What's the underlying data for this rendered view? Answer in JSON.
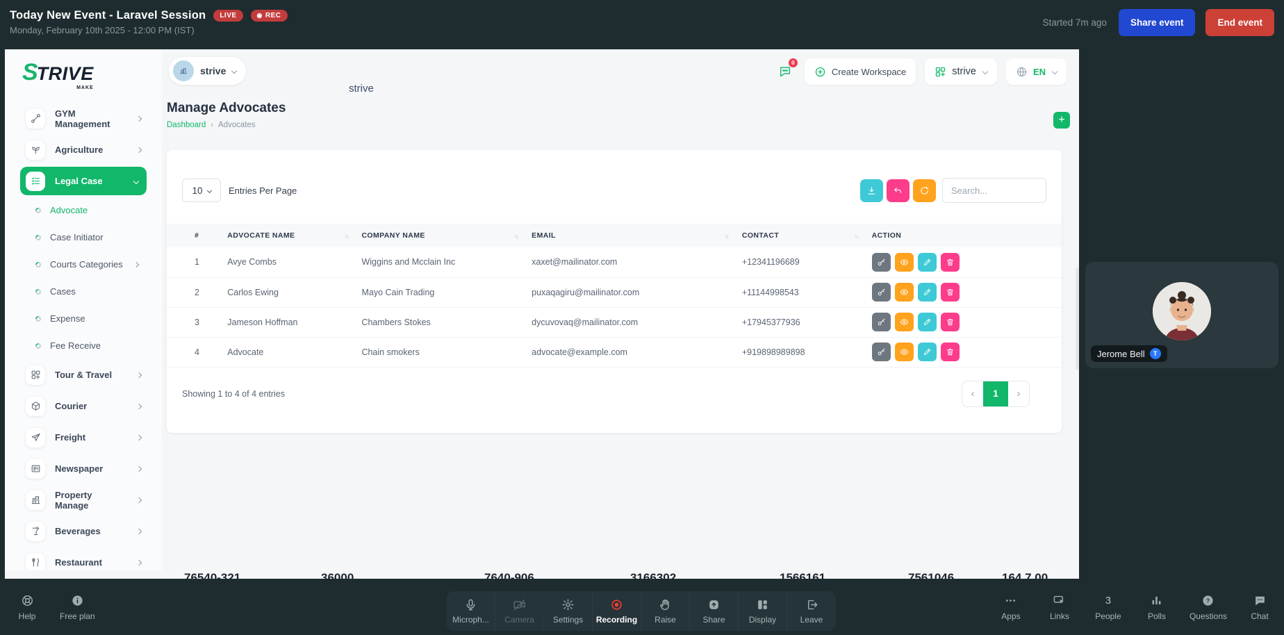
{
  "event_bar": {
    "title": "Today New Event - Laravel Session",
    "live_badge": "LIVE",
    "rec_badge": "REC",
    "subtitle": "Monday, February 10th 2025 - 12:00 PM (IST)",
    "started_ago": "Started 7m ago",
    "share_button": "Share event",
    "end_button": "End event"
  },
  "app": {
    "logo_s": "S",
    "logo_rest": "TRIVE",
    "logo_sub": "MAKE",
    "workspace_pill": "strive",
    "floating_label": "strive",
    "chat_badge": "0",
    "create_workspace": "Create Workspace",
    "workspace_selector": "strive",
    "language": "EN",
    "page_title": "Manage Advocates",
    "breadcrumb": [
      "Dashboard",
      "Advocates"
    ],
    "add_button": "+",
    "sidebar": [
      {
        "label": "GYM Management",
        "icon": "dumbbell-icon",
        "type": "main",
        "chevron": "right"
      },
      {
        "label": "Agriculture",
        "icon": "plant-icon",
        "type": "main",
        "chevron": "right"
      },
      {
        "label": "Legal Case",
        "icon": "checklist-icon",
        "type": "main",
        "chevron": "down",
        "active": true
      },
      {
        "label": "Advocate",
        "type": "sub",
        "active": true
      },
      {
        "label": "Case Initiator",
        "type": "sub"
      },
      {
        "label": "Courts Categories",
        "type": "sub",
        "chevron": "right"
      },
      {
        "label": "Cases",
        "type": "sub"
      },
      {
        "label": "Expense",
        "type": "sub"
      },
      {
        "label": "Fee Receive",
        "type": "sub"
      },
      {
        "label": "Tour & Travel",
        "icon": "grid-icon",
        "type": "main",
        "chevron": "right"
      },
      {
        "label": "Courier",
        "icon": "cube-icon",
        "type": "main",
        "chevron": "right"
      },
      {
        "label": "Freight",
        "icon": "plane-icon",
        "type": "main",
        "chevron": "right"
      },
      {
        "label": "Newspaper",
        "icon": "newspaper-icon",
        "type": "main",
        "chevron": "right"
      },
      {
        "label": "Property Manage",
        "icon": "building-icon",
        "type": "main",
        "chevron": "right"
      },
      {
        "label": "Beverages",
        "icon": "cup-icon",
        "type": "main",
        "chevron": "right"
      },
      {
        "label": "Restaurant",
        "icon": "cutlery-icon",
        "type": "main",
        "chevron": "right"
      }
    ],
    "card": {
      "entries_value": "10",
      "entries_label": "Entries Per Page",
      "tools": [
        {
          "name": "export",
          "icon": "download-icon",
          "color": "#3ec9d6"
        },
        {
          "name": "undo",
          "icon": "undo-icon",
          "color": "#fd3c8b"
        },
        {
          "name": "refresh",
          "icon": "refresh-icon",
          "color": "#ffa21d"
        }
      ],
      "search_placeholder": "Search...",
      "table": {
        "columns": [
          {
            "label": "#",
            "sortable": false,
            "class": "col-num"
          },
          {
            "label": "ADVOCATE NAME",
            "sortable": true,
            "class": "col-name"
          },
          {
            "label": "COMPANY NAME",
            "sortable": true,
            "class": "col-company"
          },
          {
            "label": "EMAIL",
            "sortable": true,
            "class": "col-email"
          },
          {
            "label": "CONTACT",
            "sortable": true,
            "class": "col-contact"
          },
          {
            "label": "ACTION",
            "sortable": false,
            "class": "col-action"
          }
        ],
        "rows": [
          {
            "num": "1",
            "name": "Avye Combs",
            "company": "Wiggins and Mcclain Inc",
            "email": "xaxet@mailinator.com",
            "contact": "+12341196689"
          },
          {
            "num": "2",
            "name": "Carlos Ewing",
            "company": "Mayo Cain Trading",
            "email": "puxaqagiru@mailinator.com",
            "contact": "+11144998543"
          },
          {
            "num": "3",
            "name": "Jameson Hoffman",
            "company": "Chambers Stokes",
            "email": "dycuvovaq@mailinator.com",
            "contact": "+17945377936"
          },
          {
            "num": "4",
            "name": "Advocate",
            "company": "Chain smokers",
            "email": "advocate@example.com",
            "contact": "+919898989898"
          }
        ],
        "row_actions": [
          {
            "name": "key",
            "icon": "key-icon",
            "color": "#6e7780"
          },
          {
            "name": "view",
            "icon": "eye-icon",
            "color": "#ffa21d"
          },
          {
            "name": "edit",
            "icon": "pencil-icon",
            "color": "#3ec9d6"
          },
          {
            "name": "delete",
            "icon": "trash-icon",
            "color": "#fd3c8b"
          }
        ]
      },
      "footer_text": "Showing 1 to 4 of 4 entries",
      "pagination": {
        "prev": "‹",
        "current": "1",
        "next": "›"
      }
    },
    "clipped_fragments": [
      "76540-321",
      "36000",
      "7640-906",
      "3166302",
      "1566161",
      "7561046",
      "164 7.00"
    ]
  },
  "participant": {
    "name": "Jerome Bell",
    "badge": "T"
  },
  "toolbar": {
    "left": [
      {
        "label": "Help",
        "icon": "lifebuoy-icon"
      },
      {
        "label": "Free plan",
        "icon": "info-icon"
      }
    ],
    "center": [
      {
        "label": "Microph...",
        "icon": "mic-icon"
      },
      {
        "label": "Camera",
        "icon": "camera-off-icon",
        "state": "disabled"
      },
      {
        "label": "Settings",
        "icon": "gear-icon"
      },
      {
        "label": "Recording",
        "icon": "record-icon",
        "state": "active"
      },
      {
        "label": "Raise",
        "icon": "hand-icon"
      },
      {
        "label": "Share",
        "icon": "share-icon"
      },
      {
        "label": "Display",
        "icon": "display-icon"
      },
      {
        "label": "Leave",
        "icon": "leave-icon"
      }
    ],
    "right": [
      {
        "label": "Apps",
        "icon": "dots-icon"
      },
      {
        "label": "Links",
        "icon": "links-icon"
      },
      {
        "label": "People",
        "icon": "people-count",
        "count": "3"
      },
      {
        "label": "Polls",
        "icon": "polls-icon"
      },
      {
        "label": "Questions",
        "icon": "question-icon"
      },
      {
        "label": "Chat",
        "icon": "chat-icon"
      }
    ]
  },
  "colors": {
    "accent_green": "#12b76a",
    "badge_red": "#c33c3c",
    "share_blue": "#2148d1",
    "end_red": "#cd4036",
    "teal": "#3ec9d6",
    "pink": "#fd3c8b",
    "orange": "#ffa21d"
  }
}
